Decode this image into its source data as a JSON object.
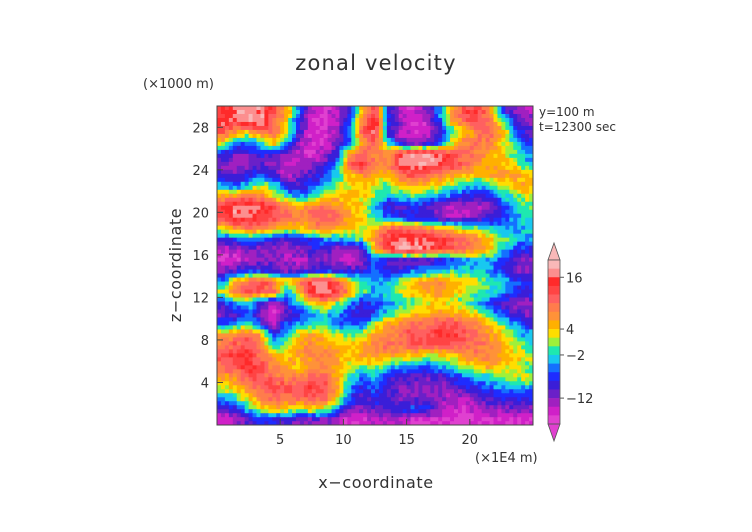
{
  "chart_data": {
    "type": "heatmap",
    "title": "zonal velocity",
    "xlabel": "x−coordinate",
    "ylabel": "z−coordinate",
    "x_unit": "(×1E4 m)",
    "y_unit": "(×1000 m)",
    "xlim": [
      0,
      25
    ],
    "ylim": [
      0,
      30
    ],
    "x_ticks": [
      5,
      10,
      15,
      20
    ],
    "y_ticks": [
      4,
      8,
      12,
      16,
      20,
      24,
      28
    ],
    "annotations": [
      "y=100 m",
      "t=12300 sec"
    ],
    "colorbar": {
      "tick_values": [
        16,
        4,
        -2,
        -12
      ],
      "tick_labels": [
        "16",
        "4",
        "−2",
        "−12"
      ],
      "levels": [
        {
          "lo": 18,
          "color": "#f9b8b8"
        },
        {
          "lo": 16,
          "color": "#fc8f8f"
        },
        {
          "lo": 14,
          "color": "#ff2a2a"
        },
        {
          "lo": 12,
          "color": "#ff4444"
        },
        {
          "lo": 10,
          "color": "#ff6060"
        },
        {
          "lo": 8,
          "color": "#ff7c4c"
        },
        {
          "lo": 6,
          "color": "#ff9238"
        },
        {
          "lo": 4,
          "color": "#ffb000"
        },
        {
          "lo": 2,
          "color": "#ffdd00"
        },
        {
          "lo": 0,
          "color": "#9ef03a"
        },
        {
          "lo": -2,
          "color": "#1ee8b0"
        },
        {
          "lo": -4,
          "color": "#18c8f0"
        },
        {
          "lo": -6,
          "color": "#1470ff"
        },
        {
          "lo": -8,
          "color": "#1e2cff"
        },
        {
          "lo": -10,
          "color": "#3a1ed8"
        },
        {
          "lo": -12,
          "color": "#6a20c8"
        },
        {
          "lo": -14,
          "color": "#a020c0"
        },
        {
          "lo": -16,
          "color": "#d020c8"
        },
        {
          "lo": -18,
          "color": "#e040d0"
        }
      ]
    },
    "grid": false,
    "note_values": "Field sampled on a 25x30 grid (x = 0.5..24.5, z = 0.5..29.5), approximate values in velocity units read from the contour colors.",
    "field_rows_top_to_bottom": [
      [
        14,
        17,
        18,
        17,
        12,
        6,
        -6,
        -14,
        -16,
        -14,
        -8,
        4,
        14,
        -8,
        -14,
        -16,
        -12,
        -6,
        6,
        12,
        14,
        8,
        -6,
        -12,
        -14
      ],
      [
        16,
        14,
        18,
        18,
        10,
        4,
        -8,
        -16,
        -18,
        -14,
        -6,
        8,
        18,
        -6,
        -12,
        -16,
        -14,
        -8,
        4,
        10,
        12,
        10,
        2,
        -8,
        -12
      ],
      [
        12,
        6,
        4,
        8,
        10,
        2,
        -10,
        -16,
        -16,
        -12,
        -4,
        10,
        16,
        -8,
        -14,
        -16,
        -16,
        -10,
        -2,
        4,
        8,
        10,
        6,
        -4,
        -10
      ],
      [
        2,
        -4,
        -6,
        -2,
        4,
        -4,
        -12,
        -16,
        -16,
        -12,
        -6,
        6,
        12,
        -2,
        -10,
        -14,
        -12,
        -8,
        2,
        8,
        10,
        8,
        4,
        -2,
        -6
      ],
      [
        -8,
        -12,
        -10,
        -8,
        -10,
        -12,
        -14,
        -16,
        -14,
        -8,
        6,
        10,
        8,
        6,
        14,
        18,
        18,
        16,
        12,
        10,
        8,
        6,
        4,
        0,
        -4
      ],
      [
        -12,
        -14,
        -12,
        -10,
        -12,
        -14,
        -14,
        -12,
        -10,
        -4,
        12,
        14,
        10,
        8,
        16,
        18,
        18,
        16,
        14,
        10,
        8,
        6,
        4,
        2,
        -2
      ],
      [
        -10,
        -12,
        -8,
        -6,
        -10,
        -14,
        -12,
        -10,
        -6,
        -2,
        4,
        8,
        6,
        4,
        10,
        12,
        10,
        8,
        6,
        4,
        4,
        6,
        8,
        6,
        4
      ],
      [
        -4,
        -6,
        -2,
        2,
        -2,
        -8,
        -10,
        -8,
        -4,
        0,
        2,
        4,
        2,
        0,
        4,
        6,
        4,
        2,
        0,
        -2,
        -4,
        -2,
        2,
        4,
        6
      ],
      [
        6,
        8,
        10,
        8,
        4,
        -2,
        -4,
        -2,
        2,
        4,
        6,
        4,
        0,
        -4,
        -2,
        0,
        -2,
        -4,
        -6,
        -8,
        -10,
        -8,
        -4,
        0,
        2
      ],
      [
        14,
        18,
        18,
        16,
        12,
        8,
        6,
        8,
        10,
        8,
        4,
        2,
        -4,
        -8,
        -10,
        -8,
        -10,
        -12,
        -14,
        -14,
        -14,
        -12,
        -8,
        -4,
        0
      ],
      [
        12,
        16,
        16,
        14,
        12,
        10,
        8,
        10,
        12,
        10,
        6,
        4,
        -2,
        -6,
        -8,
        -8,
        -10,
        -12,
        -14,
        -14,
        -12,
        -10,
        -8,
        -4,
        -2
      ],
      [
        4,
        8,
        10,
        8,
        6,
        4,
        4,
        6,
        8,
        6,
        4,
        2,
        4,
        10,
        12,
        10,
        8,
        6,
        4,
        2,
        0,
        -2,
        -4,
        -4,
        -2
      ],
      [
        -8,
        -6,
        -4,
        -6,
        -8,
        -10,
        -8,
        -6,
        -4,
        -4,
        -2,
        0,
        8,
        14,
        16,
        16,
        16,
        14,
        12,
        10,
        8,
        4,
        0,
        -2,
        -4
      ],
      [
        -14,
        -14,
        -12,
        -12,
        -12,
        -14,
        -12,
        -10,
        -10,
        -12,
        -14,
        -10,
        4,
        14,
        18,
        18,
        16,
        14,
        12,
        10,
        8,
        4,
        -2,
        -6,
        -8
      ],
      [
        -16,
        -16,
        -14,
        -12,
        -12,
        -14,
        -14,
        -12,
        -12,
        -14,
        -14,
        -12,
        -6,
        -10,
        -12,
        -12,
        -12,
        -10,
        -8,
        -6,
        -4,
        -4,
        -6,
        -10,
        -12
      ],
      [
        -12,
        -10,
        -8,
        -8,
        -10,
        -12,
        -12,
        -10,
        -8,
        -10,
        -10,
        -8,
        -6,
        -8,
        -8,
        -6,
        -4,
        -4,
        -2,
        -2,
        -2,
        -4,
        -8,
        -12,
        -12
      ],
      [
        -4,
        6,
        10,
        12,
        8,
        4,
        8,
        16,
        16,
        12,
        4,
        -2,
        -4,
        -4,
        0,
        4,
        6,
        8,
        6,
        4,
        2,
        0,
        -2,
        -6,
        -8
      ],
      [
        2,
        10,
        12,
        12,
        10,
        -6,
        4,
        16,
        18,
        14,
        6,
        0,
        -4,
        -2,
        2,
        4,
        6,
        6,
        4,
        2,
        0,
        -2,
        -4,
        -6,
        -8
      ],
      [
        -8,
        -4,
        -2,
        -10,
        -14,
        -8,
        -2,
        4,
        6,
        2,
        -4,
        -8,
        -6,
        -4,
        -2,
        0,
        2,
        4,
        2,
        0,
        -2,
        -6,
        -10,
        -12,
        -12
      ],
      [
        -12,
        -10,
        -6,
        -12,
        -16,
        -12,
        -8,
        -4,
        -2,
        -4,
        -8,
        -10,
        -8,
        -2,
        2,
        4,
        4,
        6,
        6,
        4,
        2,
        -2,
        -6,
        -10,
        -12
      ],
      [
        -6,
        -4,
        0,
        -8,
        -14,
        -6,
        -4,
        -2,
        -2,
        -4,
        -6,
        -6,
        2,
        6,
        8,
        10,
        10,
        12,
        12,
        10,
        8,
        4,
        0,
        -4,
        -8
      ],
      [
        6,
        8,
        10,
        6,
        -8,
        -4,
        4,
        6,
        4,
        2,
        0,
        2,
        6,
        8,
        10,
        12,
        12,
        14,
        14,
        12,
        10,
        8,
        4,
        0,
        -4
      ],
      [
        10,
        12,
        12,
        8,
        -4,
        2,
        6,
        8,
        6,
        4,
        4,
        6,
        8,
        10,
        10,
        12,
        12,
        12,
        12,
        10,
        10,
        8,
        6,
        2,
        -2
      ],
      [
        12,
        14,
        14,
        10,
        6,
        4,
        6,
        8,
        8,
        6,
        4,
        6,
        6,
        6,
        4,
        4,
        2,
        2,
        4,
        6,
        8,
        8,
        6,
        4,
        2
      ],
      [
        10,
        12,
        14,
        12,
        8,
        6,
        4,
        6,
        8,
        6,
        2,
        0,
        2,
        -2,
        -4,
        -4,
        -6,
        -4,
        -2,
        2,
        4,
        6,
        4,
        2,
        0
      ],
      [
        6,
        8,
        12,
        12,
        10,
        8,
        8,
        10,
        10,
        6,
        -2,
        -6,
        -4,
        -8,
        -10,
        -10,
        -12,
        -10,
        -8,
        -6,
        -4,
        -2,
        0,
        2,
        2
      ],
      [
        2,
        4,
        8,
        10,
        12,
        12,
        12,
        14,
        12,
        6,
        -4,
        -8,
        -6,
        -10,
        -12,
        -12,
        -12,
        -12,
        -12,
        -10,
        -8,
        -6,
        -4,
        -4,
        -4
      ],
      [
        -4,
        -2,
        4,
        8,
        10,
        10,
        10,
        12,
        10,
        4,
        -6,
        -10,
        -8,
        -10,
        -12,
        -12,
        -10,
        -12,
        -14,
        -14,
        -12,
        -10,
        -8,
        -8,
        -8
      ],
      [
        -10,
        -8,
        -2,
        2,
        4,
        4,
        2,
        4,
        2,
        -4,
        -10,
        -12,
        -10,
        -10,
        -8,
        -6,
        -8,
        -12,
        -14,
        -16,
        -14,
        -12,
        -12,
        -12,
        -12
      ],
      [
        -16,
        -14,
        -10,
        -8,
        -8,
        -10,
        -12,
        -12,
        -12,
        -14,
        -16,
        -16,
        -14,
        -14,
        -14,
        -16,
        -16,
        -16,
        -16,
        -18,
        -16,
        -16,
        -16,
        -16,
        -16
      ]
    ]
  }
}
